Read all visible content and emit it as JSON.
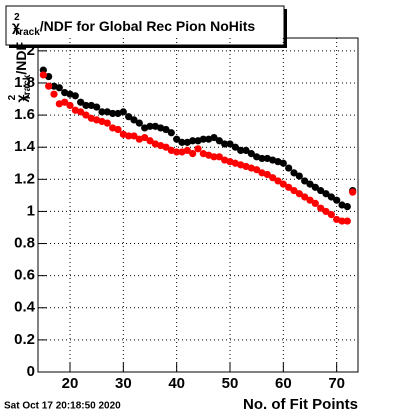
{
  "chart_data": {
    "type": "scatter",
    "title": {
      "symbol": "χ",
      "sup": "2",
      "sub": "Track",
      "text": "/NDF for Global Rec Pion NoHits"
    },
    "ylabel": {
      "symbol": "χ",
      "sup": "2",
      "sub": "Track",
      "text": "/NDF"
    },
    "xlabel": "No. of Fit Points",
    "timestamp": "Sat Oct 17 20:18:50 2020",
    "x": [
      15,
      16,
      17,
      18,
      19,
      20,
      21,
      22,
      23,
      24,
      25,
      26,
      27,
      28,
      29,
      30,
      31,
      32,
      33,
      34,
      35,
      36,
      37,
      38,
      39,
      40,
      41,
      42,
      43,
      44,
      45,
      46,
      47,
      48,
      49,
      50,
      51,
      52,
      53,
      54,
      55,
      56,
      57,
      58,
      59,
      60,
      61,
      62,
      63,
      64,
      65,
      66,
      67,
      68,
      69,
      70,
      71,
      72,
      73
    ],
    "series": [
      {
        "color": "#000000",
        "values": [
          1.88,
          1.84,
          1.78,
          1.77,
          1.74,
          1.73,
          1.72,
          1.68,
          1.66,
          1.66,
          1.65,
          1.62,
          1.62,
          1.61,
          1.61,
          1.62,
          1.59,
          1.57,
          1.55,
          1.52,
          1.53,
          1.53,
          1.52,
          1.51,
          1.49,
          1.45,
          1.43,
          1.43,
          1.44,
          1.44,
          1.45,
          1.45,
          1.46,
          1.44,
          1.42,
          1.42,
          1.4,
          1.38,
          1.38,
          1.36,
          1.34,
          1.33,
          1.33,
          1.32,
          1.31,
          1.3,
          1.27,
          1.24,
          1.22,
          1.19,
          1.17,
          1.15,
          1.13,
          1.11,
          1.09,
          1.07,
          1.04,
          1.03,
          1.13
        ]
      },
      {
        "color": "#ff0000",
        "values": [
          1.85,
          1.78,
          1.73,
          1.67,
          1.68,
          1.66,
          1.63,
          1.62,
          1.6,
          1.58,
          1.57,
          1.56,
          1.55,
          1.52,
          1.51,
          1.48,
          1.47,
          1.47,
          1.45,
          1.46,
          1.44,
          1.42,
          1.41,
          1.4,
          1.38,
          1.37,
          1.37,
          1.38,
          1.36,
          1.39,
          1.36,
          1.35,
          1.34,
          1.34,
          1.32,
          1.31,
          1.3,
          1.29,
          1.28,
          1.27,
          1.26,
          1.24,
          1.23,
          1.21,
          1.19,
          1.17,
          1.15,
          1.13,
          1.11,
          1.09,
          1.07,
          1.05,
          1.02,
          1.0,
          0.98,
          0.95,
          0.94,
          0.94,
          1.12
        ]
      }
    ],
    "xlim": [
      14,
      74
    ],
    "xticks": [
      20,
      30,
      40,
      50,
      60,
      70
    ],
    "ylim": [
      0,
      2.08
    ],
    "yticks": [
      0,
      0.2,
      0.4,
      0.6,
      0.8,
      1,
      1.2,
      1.4,
      1.6,
      1.8,
      2
    ],
    "grid": true
  }
}
